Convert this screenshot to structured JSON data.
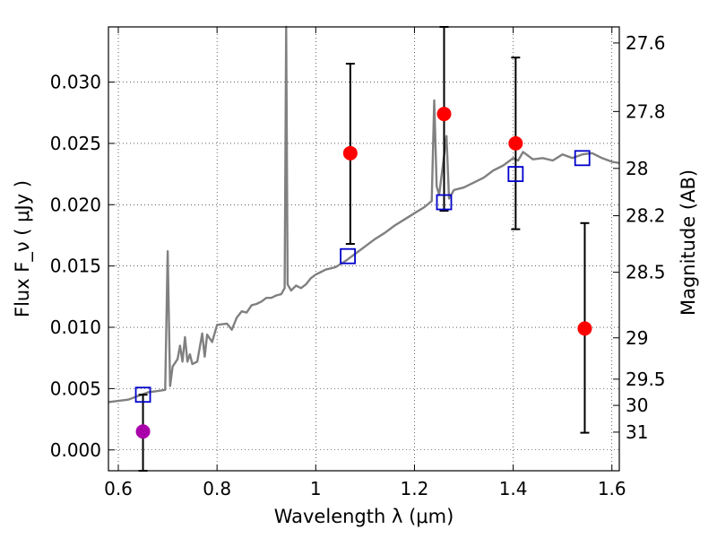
{
  "chart_data": {
    "type": "scatter",
    "xlabel": "Wavelength  λ (μm)",
    "ylabel": "Flux  F_ν  ( μJy )",
    "ylabel_right": "Magnitude (AB)",
    "xlim": [
      0.58,
      1.615
    ],
    "ylim": [
      -0.0017,
      0.0345
    ],
    "x_ticks": [
      0.6,
      0.8,
      1.0,
      1.2,
      1.4,
      1.6
    ],
    "x_tick_labels": [
      "0.6",
      "0.8",
      "1",
      "1.2",
      "1.4",
      "1.6"
    ],
    "y_ticks": [
      0.0,
      0.005,
      0.01,
      0.015,
      0.02,
      0.025,
      0.03
    ],
    "y_tick_labels": [
      "0.000",
      "0.005",
      "0.010",
      "0.015",
      "0.020",
      "0.025",
      "0.030"
    ],
    "right_axis_ticks": [
      {
        "label": "27.6",
        "flux": 0.03319
      },
      {
        "label": "27.8",
        "flux": 0.0276
      },
      {
        "label": "28",
        "flux": 0.02296
      },
      {
        "label": "28.2",
        "flux": 0.0191
      },
      {
        "label": "28.5",
        "flux": 0.01449
      },
      {
        "label": "29",
        "flux": 0.00914
      },
      {
        "label": "29.5",
        "flux": 0.00577
      },
      {
        "label": "30",
        "flux": 0.00363
      },
      {
        "label": "31",
        "flux": 0.00145
      }
    ],
    "grid": true,
    "series": [
      {
        "style": "line",
        "color": "#808080",
        "points": [
          [
            0.58,
            0.0039
          ],
          [
            0.6,
            0.004
          ],
          [
            0.62,
            0.0041
          ],
          [
            0.64,
            0.0044
          ],
          [
            0.66,
            0.0047
          ],
          [
            0.68,
            0.0048
          ],
          [
            0.695,
            0.0049
          ],
          [
            0.7,
            0.0162
          ],
          [
            0.705,
            0.0052
          ],
          [
            0.71,
            0.0068
          ],
          [
            0.72,
            0.0074
          ],
          [
            0.725,
            0.0085
          ],
          [
            0.73,
            0.0072
          ],
          [
            0.735,
            0.0092
          ],
          [
            0.74,
            0.0072
          ],
          [
            0.745,
            0.0078
          ],
          [
            0.75,
            0.007
          ],
          [
            0.76,
            0.0072
          ],
          [
            0.77,
            0.0095
          ],
          [
            0.775,
            0.0076
          ],
          [
            0.78,
            0.0094
          ],
          [
            0.79,
            0.0088
          ],
          [
            0.8,
            0.0102
          ],
          [
            0.82,
            0.0103
          ],
          [
            0.83,
            0.0098
          ],
          [
            0.84,
            0.0108
          ],
          [
            0.85,
            0.0113
          ],
          [
            0.86,
            0.0112
          ],
          [
            0.87,
            0.0118
          ],
          [
            0.88,
            0.0119
          ],
          [
            0.89,
            0.0121
          ],
          [
            0.9,
            0.0124
          ],
          [
            0.91,
            0.0124
          ],
          [
            0.92,
            0.0126
          ],
          [
            0.93,
            0.0127
          ],
          [
            0.937,
            0.0132
          ],
          [
            0.94,
            0.0345
          ],
          [
            0.943,
            0.0135
          ],
          [
            0.95,
            0.013
          ],
          [
            0.96,
            0.0134
          ],
          [
            0.97,
            0.0132
          ],
          [
            0.98,
            0.0135
          ],
          [
            0.99,
            0.014
          ],
          [
            1.0,
            0.0143
          ],
          [
            1.01,
            0.0145
          ],
          [
            1.02,
            0.0147
          ],
          [
            1.04,
            0.0149
          ],
          [
            1.06,
            0.0154
          ],
          [
            1.08,
            0.016
          ],
          [
            1.1,
            0.0166
          ],
          [
            1.12,
            0.0172
          ],
          [
            1.14,
            0.0177
          ],
          [
            1.16,
            0.0183
          ],
          [
            1.18,
            0.0188
          ],
          [
            1.2,
            0.0193
          ],
          [
            1.22,
            0.0198
          ],
          [
            1.235,
            0.0203
          ],
          [
            1.24,
            0.0285
          ],
          [
            1.245,
            0.0215
          ],
          [
            1.25,
            0.0208
          ],
          [
            1.265,
            0.0256
          ],
          [
            1.27,
            0.0205
          ],
          [
            1.28,
            0.0212
          ],
          [
            1.3,
            0.0214
          ],
          [
            1.32,
            0.0218
          ],
          [
            1.34,
            0.0222
          ],
          [
            1.36,
            0.0228
          ],
          [
            1.38,
            0.0232
          ],
          [
            1.4,
            0.0238
          ],
          [
            1.41,
            0.0236
          ],
          [
            1.42,
            0.0243
          ],
          [
            1.44,
            0.0237
          ],
          [
            1.46,
            0.0238
          ],
          [
            1.48,
            0.0236
          ],
          [
            1.5,
            0.0241
          ],
          [
            1.52,
            0.0238
          ],
          [
            1.54,
            0.0241
          ],
          [
            1.56,
            0.0242
          ],
          [
            1.58,
            0.0238
          ],
          [
            1.6,
            0.0235
          ],
          [
            1.615,
            0.0234
          ]
        ]
      },
      {
        "style": "open-square",
        "color": "#0000cc",
        "points": [
          [
            0.65,
            0.0045
          ],
          [
            1.065,
            0.0158
          ],
          [
            1.26,
            0.0202
          ],
          [
            1.405,
            0.0225
          ],
          [
            1.54,
            0.0238
          ]
        ]
      },
      {
        "style": "filled-circle",
        "color": "#ff0000",
        "points": [
          {
            "x": 1.07,
            "y": 0.0242,
            "lo": 0.0168,
            "hi": 0.0315
          },
          {
            "x": 1.26,
            "y": 0.0274,
            "lo": 0.0195,
            "hi": 0.0345
          },
          {
            "x": 1.405,
            "y": 0.025,
            "lo": 0.018,
            "hi": 0.032
          },
          {
            "x": 1.545,
            "y": 0.0099,
            "lo": 0.0014,
            "hi": 0.0185
          }
        ]
      },
      {
        "style": "filled-circle",
        "color": "#aa00aa",
        "points": [
          {
            "x": 0.65,
            "y": 0.0015,
            "lo": -0.0017,
            "hi": 0.0045
          }
        ]
      }
    ]
  }
}
